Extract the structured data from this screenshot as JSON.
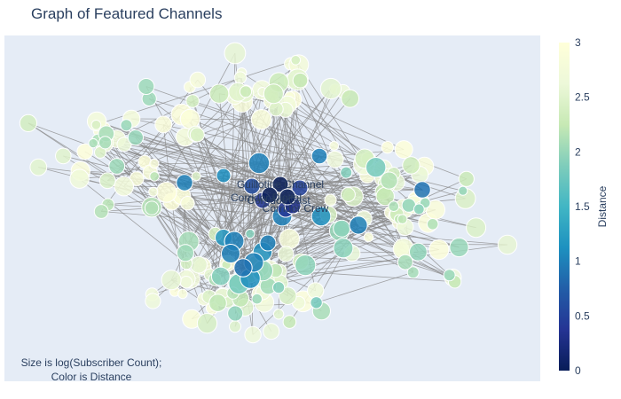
{
  "chart_data": {
    "type": "scatter",
    "subtype": "network-graph",
    "title": "Graph of Featured Channels",
    "annotation_lines": [
      "Size is log(Subscriber Count);",
      "Color is Distance"
    ],
    "colorbar": {
      "title": "Distance",
      "range": [
        0,
        3
      ],
      "ticks": [
        "0",
        "0.5",
        "1",
        "1.5",
        "2",
        "2.5",
        "3"
      ],
      "colorscale": "YlGnBu (reversed)",
      "stops": [
        "#081d58",
        "#253494",
        "#225ea8",
        "#1d91c0",
        "#41b6c4",
        "#7fcdbb",
        "#c7e9b4",
        "#edf8d9",
        "#ffffd9"
      ]
    },
    "labeled_nodes": [
      {
        "label": "Guillotine Channel",
        "distance": 0
      },
      {
        "label": "Corridor Cast",
        "distance": 0
      },
      {
        "label": "Corridor Crew",
        "distance": 0
      },
      {
        "label": "Corridor Digital",
        "distance": 0
      }
    ],
    "axes": {
      "x_visible": false,
      "y_visible": false,
      "grid": false
    },
    "edge_color": "#888888",
    "plot_background": "#e5ecf6"
  }
}
